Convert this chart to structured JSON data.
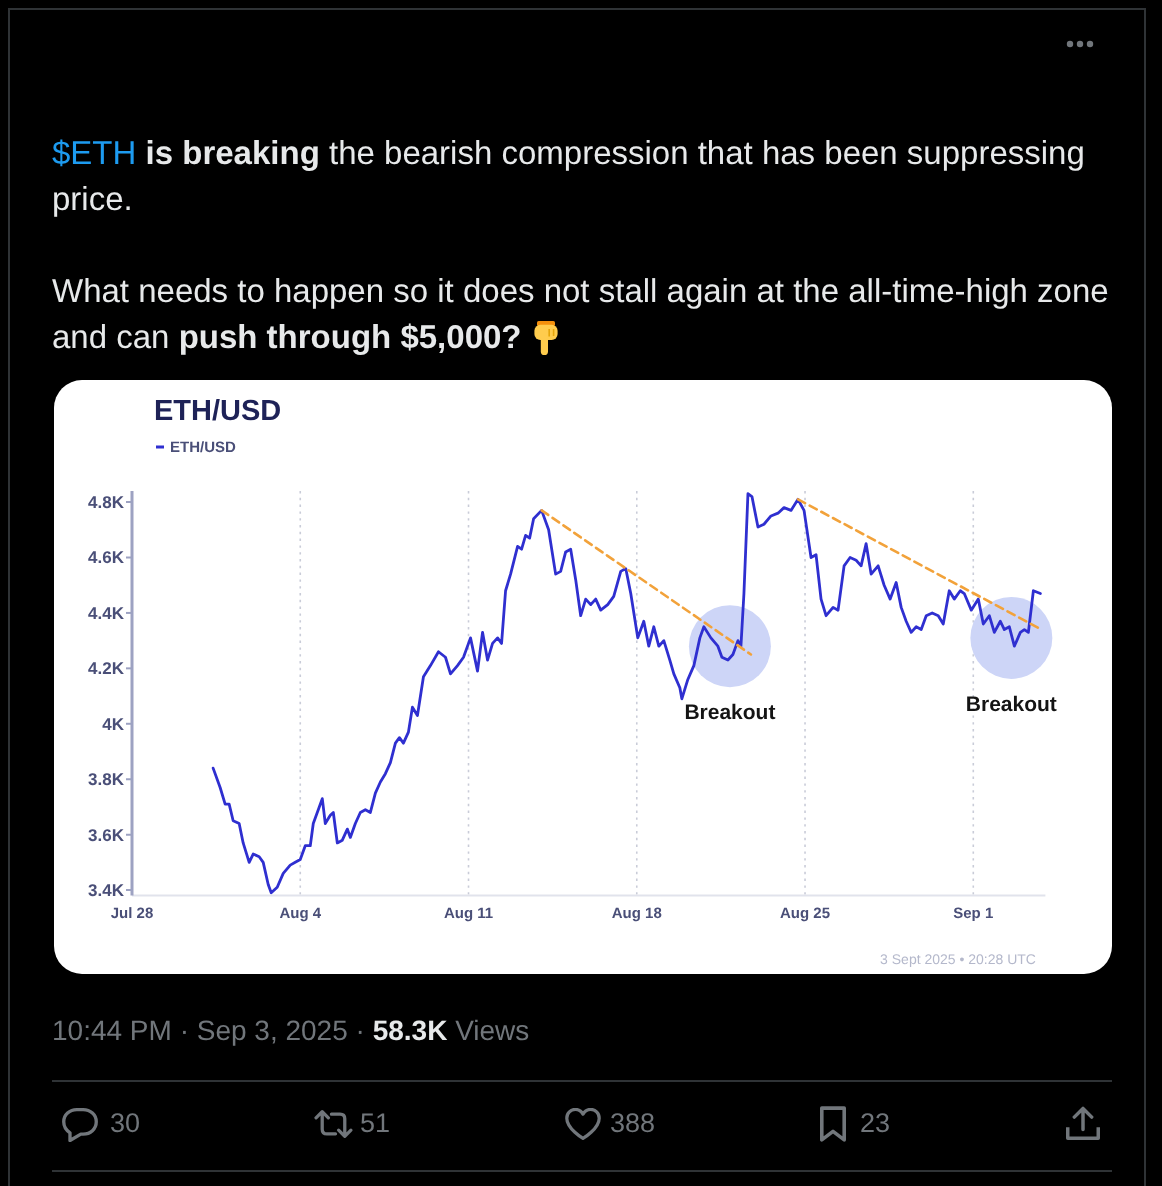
{
  "chart_data": {
    "type": "line",
    "title": "ETH/USD",
    "series": [
      {
        "name": "ETH/USD",
        "color": "#2f2fd0",
        "x": [
          "2025-07-31T09:00",
          "2025-07-31T16:00",
          "2025-07-31T21:00",
          "2025-08-01T01:00",
          "2025-08-01T05:00",
          "2025-08-01T11:00",
          "2025-08-01T15:00",
          "2025-08-01T21:00",
          "2025-08-02T01:00",
          "2025-08-02T07:00",
          "2025-08-02T11:00",
          "2025-08-02T16:00",
          "2025-08-02T19:00",
          "2025-08-03T01:00",
          "2025-08-03T07:00",
          "2025-08-03T14:00",
          "2025-08-03T19:00",
          "2025-08-04T00:00",
          "2025-08-04T05:00",
          "2025-08-04T10:00",
          "2025-08-04T13:00",
          "2025-08-04T19:00",
          "2025-08-04T22:00",
          "2025-08-05T01:00",
          "2025-08-05T06:00",
          "2025-08-05T09:00",
          "2025-08-05T13:00",
          "2025-08-05T18:00",
          "2025-08-05T23:00",
          "2025-08-06T02:00",
          "2025-08-06T07:00",
          "2025-08-06T12:00",
          "2025-08-06T17:00",
          "2025-08-06T22:00",
          "2025-08-07T03:00",
          "2025-08-07T08:00",
          "2025-08-07T13:00",
          "2025-08-07T18:00",
          "2025-08-07T23:00",
          "2025-08-08T03:00",
          "2025-08-08T07:00",
          "2025-08-08T12:00",
          "2025-08-08T16:00",
          "2025-08-08T21:00",
          "2025-08-09T03:00",
          "2025-08-09T10:00",
          "2025-08-09T18:00",
          "2025-08-10T01:00",
          "2025-08-10T06:00",
          "2025-08-10T13:00",
          "2025-08-10T19:00",
          "2025-08-11T02:00",
          "2025-08-11T09:00",
          "2025-08-11T14:00",
          "2025-08-11T19:00",
          "2025-08-12T00:00",
          "2025-08-12T05:00",
          "2025-08-12T09:00",
          "2025-08-12T13:00",
          "2025-08-12T18:00",
          "2025-08-13T01:00",
          "2025-08-13T05:00",
          "2025-08-13T09:00",
          "2025-08-13T13:00",
          "2025-08-13T17:00",
          "2025-08-14T01:00",
          "2025-08-14T08:00",
          "2025-08-14T15:00",
          "2025-08-14T20:00",
          "2025-08-15T01:00",
          "2025-08-15T06:00",
          "2025-08-15T11:00",
          "2025-08-15T16:00",
          "2025-08-15T21:00",
          "2025-08-16T02:00",
          "2025-08-16T07:00",
          "2025-08-16T12:00",
          "2025-08-16T19:00",
          "2025-08-17T01:00",
          "2025-08-17T08:00",
          "2025-08-17T13:00",
          "2025-08-17T18:00",
          "2025-08-18T01:00",
          "2025-08-18T07:00",
          "2025-08-18T12:00",
          "2025-08-18T17:00",
          "2025-08-18T22:00",
          "2025-08-19T03:00",
          "2025-08-19T09:00",
          "2025-08-19T13:00",
          "2025-08-19T19:00",
          "2025-08-19T21:00",
          "2025-08-20T03:00",
          "2025-08-20T09:00",
          "2025-08-20T15:00",
          "2025-08-20T19:00",
          "2025-08-21T02:00",
          "2025-08-21T09:00",
          "2025-08-21T13:00",
          "2025-08-21T19:00",
          "2025-08-22T00:00",
          "2025-08-22T05:00",
          "2025-08-22T08:00",
          "2025-08-22T11:00",
          "2025-08-22T15:00",
          "2025-08-22T19:00",
          "2025-08-23T01:00",
          "2025-08-23T07:00",
          "2025-08-23T14:00",
          "2025-08-23T21:00",
          "2025-08-24T03:00",
          "2025-08-24T10:00",
          "2025-08-24T17:00",
          "2025-08-24T23:00",
          "2025-08-25T06:00",
          "2025-08-25T11:00",
          "2025-08-25T16:00",
          "2025-08-25T21:00",
          "2025-08-26T04:00",
          "2025-08-26T09:00",
          "2025-08-26T15:00",
          "2025-08-26T21:00",
          "2025-08-27T03:00",
          "2025-08-27T08:00",
          "2025-08-27T13:00",
          "2025-08-27T18:00",
          "2025-08-28T01:00",
          "2025-08-28T07:00",
          "2025-08-28T13:00",
          "2025-08-28T19:00",
          "2025-08-29T00:00",
          "2025-08-29T05:00",
          "2025-08-29T10:00",
          "2025-08-29T15:00",
          "2025-08-29T20:00",
          "2025-08-30T01:00",
          "2025-08-30T07:00",
          "2025-08-30T13:00",
          "2025-08-30T18:00",
          "2025-08-31T00:00",
          "2025-08-31T05:00",
          "2025-08-31T11:00",
          "2025-08-31T15:00",
          "2025-08-31T22:00",
          "2025-09-01T05:00",
          "2025-09-01T10:00",
          "2025-09-01T16:00",
          "2025-09-01T21:00",
          "2025-09-02T03:00",
          "2025-09-02T07:00",
          "2025-09-02T12:00",
          "2025-09-02T17:00",
          "2025-09-02T23:00",
          "2025-09-03T03:00",
          "2025-09-03T07:00",
          "2025-09-03T12:00",
          "2025-09-03T19:00"
        ],
        "values": [
          3840,
          3770,
          3710,
          3710,
          3650,
          3640,
          3570,
          3500,
          3530,
          3520,
          3500,
          3420,
          3390,
          3410,
          3460,
          3490,
          3500,
          3510,
          3560,
          3560,
          3640,
          3700,
          3730,
          3640,
          3670,
          3680,
          3570,
          3580,
          3620,
          3590,
          3640,
          3680,
          3690,
          3680,
          3750,
          3790,
          3820,
          3860,
          3930,
          3950,
          3930,
          3970,
          4060,
          4030,
          4170,
          4210,
          4260,
          4240,
          4180,
          4210,
          4240,
          4310,
          4190,
          4330,
          4230,
          4290,
          4310,
          4290,
          4480,
          4540,
          4640,
          4630,
          4680,
          4670,
          4740,
          4770,
          4700,
          4540,
          4550,
          4620,
          4630,
          4520,
          4390,
          4450,
          4430,
          4450,
          4410,
          4430,
          4460,
          4550,
          4560,
          4470,
          4310,
          4370,
          4280,
          4350,
          4280,
          4300,
          4230,
          4180,
          4130,
          4090,
          4160,
          4210,
          4310,
          4350,
          4310,
          4280,
          4240,
          4230,
          4250,
          4300,
          4280,
          4470,
          4830,
          4820,
          4710,
          4720,
          4750,
          4760,
          4780,
          4770,
          4810,
          4770,
          4600,
          4610,
          4450,
          4390,
          4420,
          4410,
          4570,
          4600,
          4590,
          4570,
          4650,
          4540,
          4570,
          4500,
          4450,
          4510,
          4420,
          4370,
          4330,
          4350,
          4340,
          4390,
          4400,
          4390,
          4360,
          4480,
          4450,
          4480,
          4470,
          4410,
          4450,
          4360,
          4390,
          4330,
          4370,
          4340,
          4350,
          4280,
          4330,
          4340,
          4330,
          4480,
          4470
        ]
      },
      {
        "type": "line",
        "color": "#f2a23a",
        "line_style": "dashed",
        "x": [
          "2025-08-14T01:00",
          "2025-08-22T18:00"
        ],
        "values": [
          4770,
          4250
        ]
      },
      {
        "type": "line",
        "color": "#f2a23a",
        "line_style": "dashed",
        "x": [
          "2025-08-24T17:00",
          "2025-09-03T20:00"
        ],
        "values": [
          4810,
          4340
        ]
      }
    ],
    "xlim": [
      "2025-07-28",
      "2025-09-04"
    ],
    "xticks": [
      {
        "value": "2025-07-28",
        "label": "Jul 28"
      },
      {
        "value": "2025-08-04",
        "label": "Aug 4"
      },
      {
        "value": "2025-08-11",
        "label": "Aug 11"
      },
      {
        "value": "2025-08-18",
        "label": "Aug 18"
      },
      {
        "value": "2025-08-25",
        "label": "Aug 25"
      },
      {
        "value": "2025-09-01",
        "label": "Sep 1"
      }
    ],
    "ylim": [
      3380,
      4840
    ],
    "yticks": [
      {
        "value": 3400,
        "label": "3.4K"
      },
      {
        "value": 3600,
        "label": "3.6K"
      },
      {
        "value": 3800,
        "label": "3.8K"
      },
      {
        "value": 4000,
        "label": "4K"
      },
      {
        "value": 4200,
        "label": "4.2K"
      },
      {
        "value": 4400,
        "label": "4.4K"
      },
      {
        "value": 4600,
        "label": "4.6K"
      },
      {
        "value": 4800,
        "label": "4.8K"
      }
    ],
    "grid": "x",
    "legend": "top left",
    "annotations": [
      "$ETH",
      "is breaking",
      "the bearish compression that has been suppressing",
      "price.",
      "What needs to happen so it does not stall again at the all-time-high zone",
      "and can",
      "push through $5,000?",
      {
        "text": "Breakout",
        "x": "2025-08-21T21:00",
        "y": 4280
      },
      {
        "text": "Breakout",
        "x": "2025-09-02T14:00",
        "y": 4310
      },
      "3 Sept 2025 • 20:28 UTC",
      "10:44 PM · Sep 3, 2025 ·",
      "58.3K",
      "Views",
      "30",
      "51",
      "388",
      "23"
    ]
  }
}
